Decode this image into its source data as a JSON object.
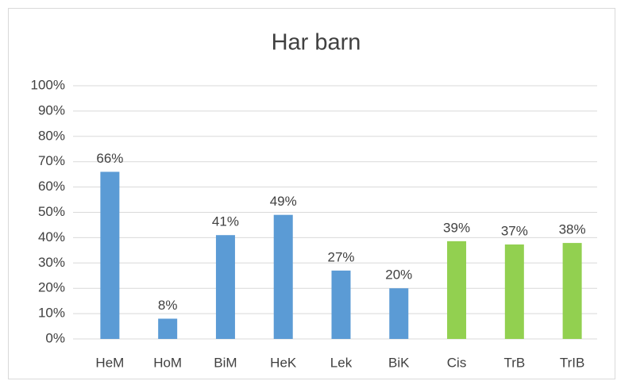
{
  "chart_data": {
    "type": "bar",
    "title": "Har barn",
    "categories": [
      "HeM",
      "HoM",
      "BiM",
      "HeK",
      "Lek",
      "BiK",
      "Cis",
      "TrB",
      "TrIB"
    ],
    "values": [
      66,
      8,
      41,
      49,
      27,
      20,
      38.6,
      37.3,
      37.9
    ],
    "value_labels": [
      "66%",
      "8%",
      "41%",
      "49%",
      "27%",
      "20%",
      "39%",
      "37%",
      "38%"
    ],
    "colors": [
      "#5b9bd5",
      "#5b9bd5",
      "#5b9bd5",
      "#5b9bd5",
      "#5b9bd5",
      "#5b9bd5",
      "#92d050",
      "#92d050",
      "#92d050"
    ],
    "ylim": [
      0,
      100
    ],
    "yticks": [
      {
        "value": 0,
        "label": "0%"
      },
      {
        "value": 10,
        "label": "10%"
      },
      {
        "value": 20,
        "label": "20%"
      },
      {
        "value": 30,
        "label": "30%"
      },
      {
        "value": 40,
        "label": "40%"
      },
      {
        "value": 50,
        "label": "50%"
      },
      {
        "value": 60,
        "label": "60%"
      },
      {
        "value": 70,
        "label": "70%"
      },
      {
        "value": 80,
        "label": "80%"
      },
      {
        "value": 90,
        "label": "90%"
      },
      {
        "value": 100,
        "label": "100%"
      }
    ],
    "grid": true
  }
}
